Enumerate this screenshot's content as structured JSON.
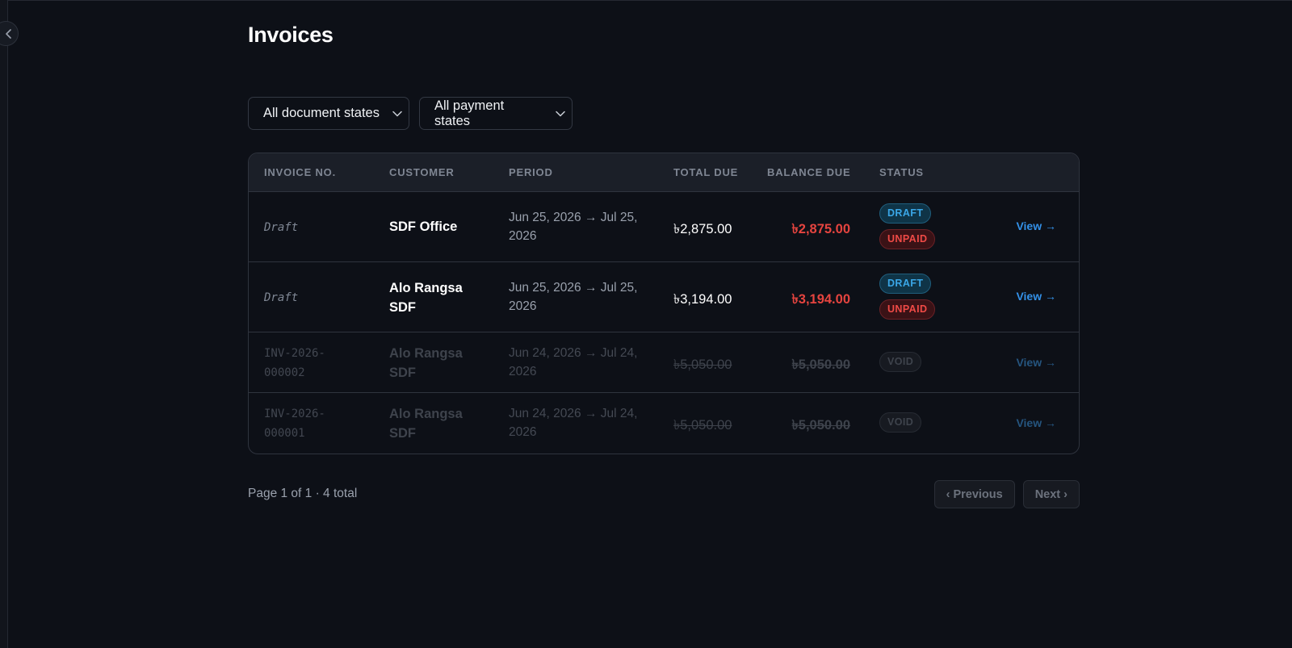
{
  "page": {
    "title": "Invoices"
  },
  "filters": {
    "document_state": "All document states",
    "payment_state": "All payment states"
  },
  "table": {
    "columns": [
      "INVOICE NO.",
      "CUSTOMER",
      "PERIOD",
      "TOTAL DUE",
      "BALANCE DUE",
      "STATUS"
    ],
    "rows": [
      {
        "invoice_no": "Draft",
        "customer": "SDF Office",
        "period": "Jun 25, 2026 → Jul 25, 2026",
        "total_due": "৳2,875.00",
        "balance_due": "৳2,875.00",
        "badges": [
          "DRAFT",
          "UNPAID"
        ],
        "action": "View →"
      },
      {
        "invoice_no": "Draft",
        "customer": "Alo Rangsa SDF",
        "period": "Jun 25, 2026 → Jul 25, 2026",
        "total_due": "৳3,194.00",
        "balance_due": "৳3,194.00",
        "badges": [
          "DRAFT",
          "UNPAID"
        ],
        "action": "View →"
      },
      {
        "invoice_no": "INV-2026-000002",
        "customer": "Alo Rangsa SDF",
        "period": "Jun 24, 2026 → Jul 24, 2026",
        "total_due": "৳5,050.00",
        "balance_due": "৳5,050.00",
        "badges": [
          "VOID"
        ],
        "action": "View →"
      },
      {
        "invoice_no": "INV-2026-000001",
        "customer": "Alo Rangsa SDF",
        "period": "Jun 24, 2026 → Jul 24, 2026",
        "total_due": "৳5,050.00",
        "balance_due": "৳5,050.00",
        "badges": [
          "VOID"
        ],
        "action": "View →"
      }
    ]
  },
  "pagination": {
    "info": "Page 1 of 1 · 4 total",
    "previous_label": "‹ Previous",
    "next_label": "Next ›"
  },
  "colors": {
    "background": "#0d1017",
    "accent_link": "#3391e8",
    "danger": "#e5443f",
    "draft_badge": "#3aa6e6"
  },
  "icons": {
    "sidebar_toggle": "chevron-left-icon",
    "select": "chevron-down-icon"
  }
}
